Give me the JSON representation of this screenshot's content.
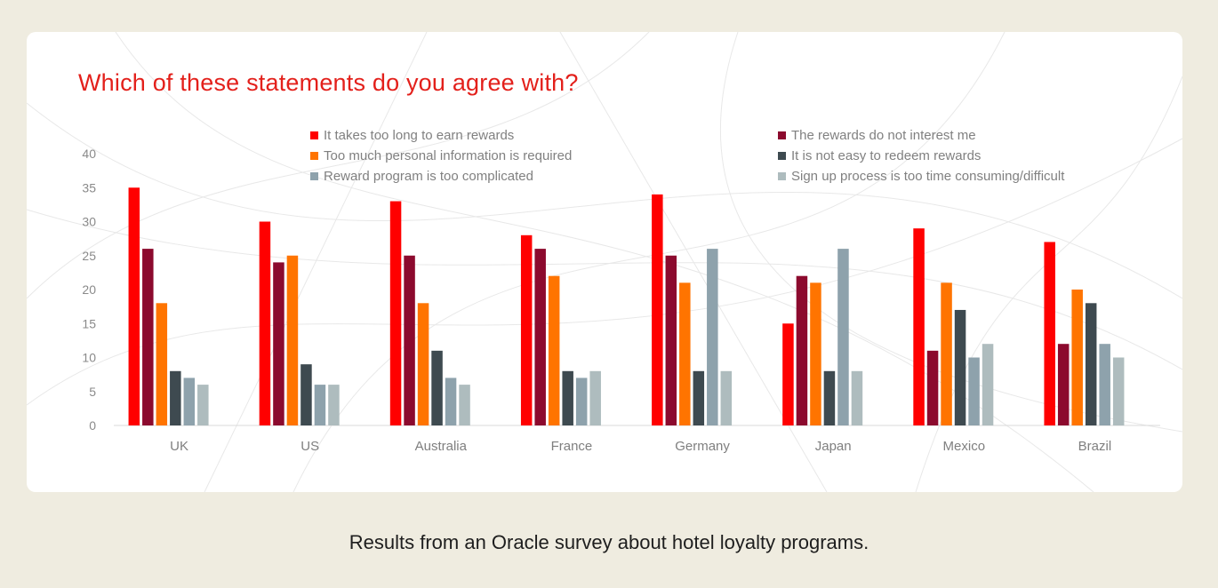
{
  "caption": "Results from an Oracle survey about hotel loyalty programs.",
  "chart_data": {
    "type": "bar",
    "title": "Which of these statements do you agree with?",
    "categories": [
      "UK",
      "US",
      "Australia",
      "France",
      "Germany",
      "Japan",
      "Mexico",
      "Brazil"
    ],
    "ylim": [
      0,
      40
    ],
    "yticks": [
      0,
      5,
      10,
      15,
      20,
      25,
      30,
      35,
      40
    ],
    "legend_position": "top",
    "series": [
      {
        "name": "It takes too long to earn rewards",
        "color": "#ff0000",
        "values": [
          35,
          30,
          33,
          28,
          34,
          15,
          29,
          27
        ]
      },
      {
        "name": "The rewards do not interest me",
        "color": "#8c0a2e",
        "values": [
          26,
          24,
          25,
          26,
          25,
          22,
          11,
          12
        ]
      },
      {
        "name": "Too much personal information is required",
        "color": "#ff7400",
        "values": [
          18,
          25,
          18,
          22,
          21,
          21,
          21,
          20
        ]
      },
      {
        "name": "It is not easy to redeem rewards",
        "color": "#3e4a50",
        "values": [
          8,
          9,
          11,
          8,
          8,
          8,
          17,
          18
        ]
      },
      {
        "name": "Reward program is too complicated",
        "color": "#8ea2ac",
        "values": [
          7,
          6,
          7,
          7,
          26,
          26,
          10,
          12
        ]
      },
      {
        "name": "Sign up process is too time consuming/difficult",
        "color": "#aebcbe",
        "values": [
          6,
          6,
          6,
          8,
          8,
          8,
          12,
          10
        ]
      }
    ]
  }
}
